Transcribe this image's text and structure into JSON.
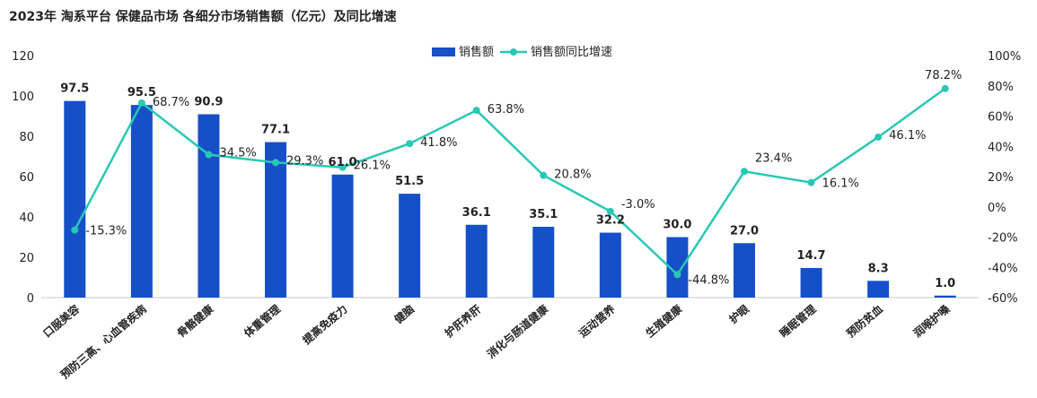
{
  "chart_data": {
    "type": "bar+line",
    "title": "2023年 淘系平台  保健品市场 各细分市场销售额（亿元）及同比增速",
    "categories": [
      "口服美容",
      "预防三高、心血管疾病",
      "骨骼健康",
      "体重管理",
      "提高免疫力",
      "健脑",
      "护肝养肝",
      "消化与肠道健康",
      "运动营养",
      "生殖健康",
      "护眼",
      "睡眠管理",
      "预防贫血",
      "润喉护嗓"
    ],
    "series": [
      {
        "name": "销售额",
        "type": "bar",
        "axis": "left",
        "values": [
          97.5,
          95.5,
          90.9,
          77.1,
          61.0,
          51.5,
          36.1,
          35.1,
          32.2,
          30.0,
          27.0,
          14.7,
          8.3,
          1.0
        ],
        "labels": [
          "97.5",
          "95.5",
          "90.9",
          "77.1",
          "61.0",
          "51.5",
          "36.1",
          "35.1",
          "32.2",
          "30.0",
          "27.0",
          "14.7",
          "8.3",
          "1.0"
        ]
      },
      {
        "name": "销售额同比增速",
        "type": "line",
        "axis": "right",
        "values": [
          -15.3,
          68.7,
          34.5,
          29.3,
          26.1,
          41.8,
          63.8,
          20.8,
          -3.0,
          -44.8,
          23.4,
          16.1,
          46.1,
          78.2
        ],
        "labels": [
          "-15.3%",
          "68.7%",
          "34.5%",
          "29.3%",
          "26.1%",
          "41.8%",
          "63.8%",
          "20.8%",
          "-3.0%",
          "-44.8%",
          "23.4%",
          "16.1%",
          "46.1%",
          "78.2%"
        ]
      }
    ],
    "y_left": {
      "min": 0,
      "max": 120,
      "ticks": [
        "0",
        "20",
        "40",
        "60",
        "80",
        "100",
        "120"
      ]
    },
    "y_right": {
      "min": -60,
      "max": 100,
      "ticks": [
        "-60%",
        "-40%",
        "-20%",
        "0%",
        "20%",
        "40%",
        "60%",
        "80%",
        "100%"
      ]
    },
    "legend_position": "top-center",
    "colors": {
      "bar": "#1650C8",
      "line": "#2BC7B5",
      "text": "#222222",
      "axis": "#c8c8c8"
    }
  }
}
